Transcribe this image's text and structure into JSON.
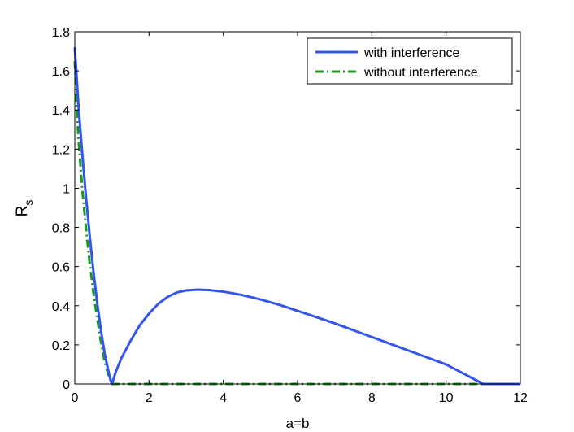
{
  "chart_data": {
    "type": "line",
    "xlabel": "a=b",
    "ylabel": "R",
    "ylabel_subscript": "s",
    "xlim": [
      0,
      12
    ],
    "ylim": [
      0,
      1.8
    ],
    "xticks": [
      0,
      2,
      4,
      6,
      8,
      10,
      12
    ],
    "yticks": [
      0,
      0.2,
      0.4,
      0.6,
      0.8,
      1,
      1.2,
      1.4,
      1.6,
      1.8
    ],
    "xtick_labels": [
      "0",
      "2",
      "4",
      "6",
      "8",
      "10",
      "12"
    ],
    "ytick_labels": [
      "0",
      "0.2",
      "0.4",
      "0.6",
      "0.8",
      "1",
      "1.2",
      "1.4",
      "1.6",
      "1.8"
    ],
    "grid": false,
    "legend_position": "top-right",
    "series": [
      {
        "name": "with interference",
        "color": "#3355ee",
        "style": "solid",
        "x": [
          0,
          0.1,
          0.2,
          0.3,
          0.4,
          0.5,
          0.6,
          0.7,
          0.8,
          0.9,
          0.95,
          1.0,
          1.1,
          1.25,
          1.5,
          1.75,
          2.0,
          2.25,
          2.5,
          2.75,
          3.0,
          3.3,
          3.6,
          4.0,
          4.5,
          5.0,
          5.5,
          6.0,
          6.5,
          7.0,
          7.5,
          8.0,
          8.5,
          9.0,
          9.5,
          10.0,
          10.5,
          11.0,
          11.5,
          12.0
        ],
        "y": [
          1.72,
          1.42,
          1.18,
          0.96,
          0.76,
          0.58,
          0.42,
          0.28,
          0.16,
          0.07,
          0.03,
          0.0,
          0.06,
          0.13,
          0.22,
          0.3,
          0.36,
          0.41,
          0.445,
          0.468,
          0.478,
          0.482,
          0.48,
          0.472,
          0.455,
          0.432,
          0.405,
          0.374,
          0.342,
          0.31,
          0.275,
          0.24,
          0.205,
          0.17,
          0.135,
          0.1,
          0.05,
          0.0,
          0.0,
          0.0
        ]
      },
      {
        "name": "without interference",
        "color": "#1a9a1a",
        "style": "dashdot",
        "x": [
          0,
          0.05,
          0.1,
          0.2,
          0.3,
          0.4,
          0.5,
          0.6,
          0.7,
          0.8,
          0.9,
          1.0,
          1.5,
          2,
          4,
          6,
          8,
          10,
          12
        ],
        "y": [
          1.65,
          1.42,
          1.25,
          1.0,
          0.8,
          0.62,
          0.47,
          0.34,
          0.22,
          0.12,
          0.05,
          0.0,
          0.0,
          0.0,
          0.0,
          0.0,
          0.0,
          0.0,
          0.0
        ]
      }
    ]
  }
}
